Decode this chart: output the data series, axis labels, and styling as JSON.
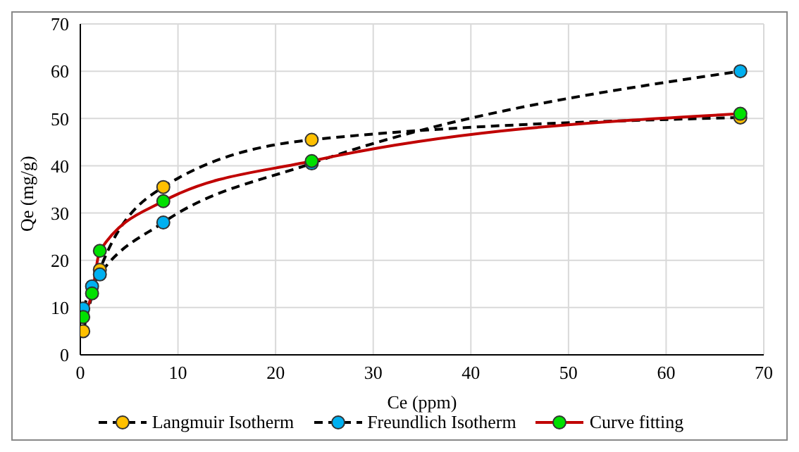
{
  "chart_data": {
    "type": "line",
    "xlabel": "Ce (ppm)",
    "ylabel": "Qe (mg/g)",
    "xlim": [
      0,
      70
    ],
    "xticks": [
      0,
      10,
      20,
      30,
      40,
      50,
      60,
      70
    ],
    "ylim": [
      0,
      70
    ],
    "yticks": [
      0,
      10,
      20,
      30,
      40,
      50,
      60,
      70
    ],
    "grid": true,
    "legend": "bottom",
    "marker": "circle",
    "series": [
      {
        "name": "Langmuir Isotherm",
        "color": "#000000",
        "colors": [
          "#ffc000",
          null,
          "#ffc000",
          "#ffc000",
          "#ffc000",
          "#ffc000"
        ],
        "line_style": "dashed",
        "x": [
          0.3,
          1.2,
          2,
          8.5,
          23.7,
          67.6
        ],
        "values": [
          5,
          null,
          18,
          35.5,
          45.5,
          50.2
        ]
      },
      {
        "name": "Freundlich Isotherm",
        "color": "#000000",
        "colors": [
          "#00b0f0",
          "#00b0f0",
          "#00b0f0",
          "#00b0f0",
          "#00b0f0",
          "#00b0f0"
        ],
        "line_style": "dashed",
        "x": [
          0.3,
          1.2,
          2,
          8.5,
          23.7,
          67.6
        ],
        "values": [
          9.8,
          14.5,
          17,
          28,
          40.5,
          60
        ]
      },
      {
        "name": "Curve fitting",
        "color": "#c00000",
        "colors": [
          "#00e000",
          "#00e000",
          "#00e000",
          "#00e000",
          "#00e000",
          "#00e000"
        ],
        "line_style": "solid",
        "x": [
          0.3,
          1.2,
          2,
          8.5,
          23.7,
          67.6
        ],
        "values": [
          8,
          13,
          22,
          32.5,
          41,
          51
        ]
      }
    ]
  }
}
